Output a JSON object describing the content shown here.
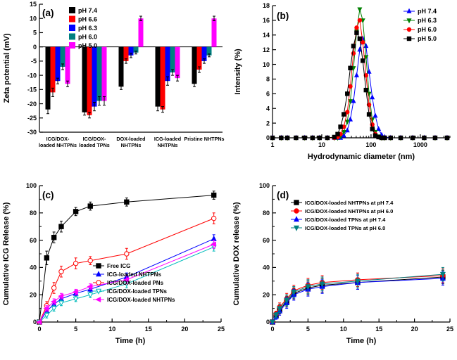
{
  "figure": {
    "background": "#ffffff"
  },
  "chart_data": [
    {
      "id": "a",
      "type": "bar",
      "panel_label": "(a)",
      "xlabel": "",
      "ylabel": "Zeta potential (mV)",
      "ylim": [
        -30,
        15
      ],
      "ytick_step": 5,
      "legend_position": "top-left-inside",
      "categories": [
        "ICG/DOX-|loaded NHTPNs",
        "ICG/DOX-|loaded TPNs",
        "DOX-loaded|NHTPNs",
        "ICG-loaded|NHTPNs",
        "Pristine NHTPNs"
      ],
      "series": [
        {
          "name": "pH 7.4",
          "color": "#000000",
          "values": [
            -22,
            -23,
            -14,
            -21,
            -13
          ],
          "err": [
            1.5,
            1,
            1,
            1.5,
            1
          ]
        },
        {
          "name": "pH 6.6",
          "color": "#ff0000",
          "values": [
            -16,
            -24,
            -5,
            -22,
            -8
          ],
          "err": [
            1.5,
            1,
            0.8,
            1,
            1
          ]
        },
        {
          "name": "pH 6.3",
          "color": "#0000ff",
          "values": [
            -12,
            -21,
            -3,
            -12,
            -5
          ],
          "err": [
            1,
            1.5,
            0.8,
            1.5,
            0.8
          ]
        },
        {
          "name": "pH 6.0",
          "color": "#008080",
          "values": [
            -7,
            -19,
            -2,
            -9,
            -3
          ],
          "err": [
            1,
            1.5,
            0.5,
            1,
            0.5
          ]
        },
        {
          "name": "pH 5.0",
          "color": "#ff00ff",
          "values": [
            -13,
            -19,
            10,
            -11,
            10
          ],
          "err": [
            1,
            1.5,
            0.8,
            1,
            0.8
          ]
        }
      ]
    },
    {
      "id": "b",
      "type": "line",
      "panel_label": "(b)",
      "xlabel": "Hydrodynamic diameter (nm)",
      "ylabel": "Intensity (%)",
      "xscale": "log",
      "xlim": [
        1,
        4000
      ],
      "ylim": [
        0,
        18
      ],
      "ytick_step": 2,
      "legend_position": "top-right-inside",
      "x": [
        1,
        1.5,
        2,
        3,
        4.5,
        6.5,
        9,
        13,
        18,
        21,
        24,
        28,
        33,
        38,
        44,
        51,
        59,
        68,
        79,
        91,
        106,
        122,
        142,
        164,
        190,
        250,
        400,
        700,
        1200,
        2000,
        3500
      ],
      "series": [
        {
          "name": "pH 7.4",
          "color": "#0000ff",
          "marker": "triangle-up",
          "open": false,
          "y": [
            0,
            0,
            0,
            0,
            0,
            0,
            0,
            0,
            0,
            0,
            0,
            0.3,
            1,
            2.5,
            5,
            8.5,
            12,
            13.5,
            12.5,
            9,
            5.5,
            3,
            1.2,
            0.4,
            0.1,
            0,
            0,
            0,
            0,
            0,
            0
          ]
        },
        {
          "name": "pH 6.3",
          "color": "#008000",
          "marker": "triangle-down",
          "open": false,
          "y": [
            0,
            0,
            0,
            0,
            0,
            0,
            0,
            0,
            0,
            0,
            0.2,
            0.8,
            2.2,
            5,
            9.5,
            14.5,
            17.5,
            16,
            11,
            6,
            2.5,
            0.8,
            0.2,
            0,
            0,
            0,
            0,
            0,
            0,
            0,
            0
          ]
        },
        {
          "name": "pH 6.0",
          "color": "#ff0000",
          "marker": "circle",
          "open": false,
          "y": [
            0,
            0,
            0,
            0,
            0,
            0,
            0,
            0,
            0,
            0.1,
            0.5,
            1.5,
            3.5,
            7,
            11.5,
            15,
            16,
            13,
            8.5,
            4.5,
            1.8,
            0.5,
            0.1,
            0,
            0,
            0,
            0,
            0,
            0,
            0,
            0
          ]
        },
        {
          "name": "pH 5.0",
          "color": "#000000",
          "marker": "square",
          "open": false,
          "y": [
            0,
            0,
            0,
            0,
            0,
            0,
            0,
            0,
            0.1,
            0.5,
            1.5,
            3.2,
            6,
            9.5,
            12.5,
            14.3,
            13.5,
            10.5,
            6.5,
            3.2,
            1.2,
            0.3,
            0.1,
            0,
            0,
            0,
            0,
            0,
            0,
            0,
            0
          ]
        }
      ]
    },
    {
      "id": "c",
      "type": "line",
      "panel_label": "(c)",
      "xlabel": "Time (h)",
      "ylabel": "Cumulative ICG Release (%)",
      "xlim": [
        0,
        25
      ],
      "xtick_step": 5,
      "ylim": [
        0,
        100
      ],
      "ytick_step": 20,
      "legend_position": "mid-right-inside",
      "x": [
        0,
        1,
        2,
        3,
        5,
        7,
        12,
        24
      ],
      "series": [
        {
          "name": "Free ICG",
          "color": "#000000",
          "marker": "square",
          "open": false,
          "y": [
            0,
            47,
            62,
            70,
            81,
            85,
            88,
            93
          ],
          "err": [
            0,
            5,
            4,
            4,
            3,
            3,
            3,
            3
          ]
        },
        {
          "name": "ICG-loaded NHTPNs",
          "color": "#0000ff",
          "marker": "triangle-up",
          "open": false,
          "y": [
            0,
            8,
            13,
            17,
            21,
            24,
            33,
            61
          ],
          "err": [
            0,
            2,
            2,
            2,
            2,
            2,
            3,
            3
          ]
        },
        {
          "name": "ICG/DOX-loaded PNs",
          "color": "#ff0000",
          "marker": "circle",
          "open": true,
          "y": [
            0,
            12,
            25,
            37,
            43,
            45,
            50,
            76
          ],
          "err": [
            0,
            3,
            4,
            4,
            4,
            3,
            4,
            4
          ]
        },
        {
          "name": "ICG/DOX-loaded TPNs",
          "color": "#00bbbb",
          "marker": "triangle-down",
          "open": true,
          "y": [
            0,
            5,
            10,
            14,
            17,
            20,
            28,
            55
          ],
          "err": [
            0,
            2,
            2,
            2,
            2,
            2,
            3,
            3
          ]
        },
        {
          "name": "ICG/DOX-loaded NHTPNs",
          "color": "#ff00ff",
          "marker": "triangle-left",
          "open": false,
          "y": [
            0,
            10,
            15,
            19,
            22,
            26,
            31,
            57
          ],
          "err": [
            0,
            2,
            2,
            2,
            2,
            2,
            3,
            3
          ]
        }
      ]
    },
    {
      "id": "d",
      "type": "line",
      "panel_label": "(d)",
      "xlabel": "Time (h)",
      "ylabel": "Cumulative DOX release (%)",
      "xlim": [
        0,
        25
      ],
      "xtick_step": 5,
      "ylim": [
        0,
        100
      ],
      "ytick_step": 20,
      "legend_position": "top-inside",
      "x": [
        0,
        0.5,
        1,
        2,
        3,
        5,
        7,
        12,
        24
      ],
      "series": [
        {
          "name": "ICG/DOX-loaded NHTPNs at pH 7.4",
          "color": "#000000",
          "marker": "square",
          "open": false,
          "y": [
            0,
            5,
            9,
            15,
            21,
            25,
            27,
            29,
            33
          ],
          "err": [
            0,
            2,
            3,
            4,
            4,
            5,
            5,
            5,
            5
          ]
        },
        {
          "name": "ICG/DOX-loaded NHTPNs at pH 6.0",
          "color": "#ff0000",
          "marker": "circle",
          "open": false,
          "y": [
            0,
            6,
            11,
            17,
            23,
            27,
            29,
            31,
            34
          ],
          "err": [
            0,
            2,
            3,
            4,
            4,
            5,
            5,
            5,
            5
          ]
        },
        {
          "name": "ICG/DOX-loaded TPNs at pH 7.4",
          "color": "#0000ff",
          "marker": "triangle-up",
          "open": false,
          "y": [
            0,
            4,
            8,
            14,
            20,
            24,
            26,
            29,
            32
          ],
          "err": [
            0,
            2,
            3,
            4,
            4,
            5,
            5,
            5,
            5
          ]
        },
        {
          "name": "ICG/DOX-loaded TPNs at pH 6.0",
          "color": "#008080",
          "marker": "triangle-down",
          "open": false,
          "y": [
            0,
            5,
            10,
            16,
            22,
            26,
            28,
            30,
            35
          ],
          "err": [
            0,
            2,
            3,
            4,
            4,
            5,
            5,
            5,
            5
          ]
        }
      ]
    }
  ]
}
